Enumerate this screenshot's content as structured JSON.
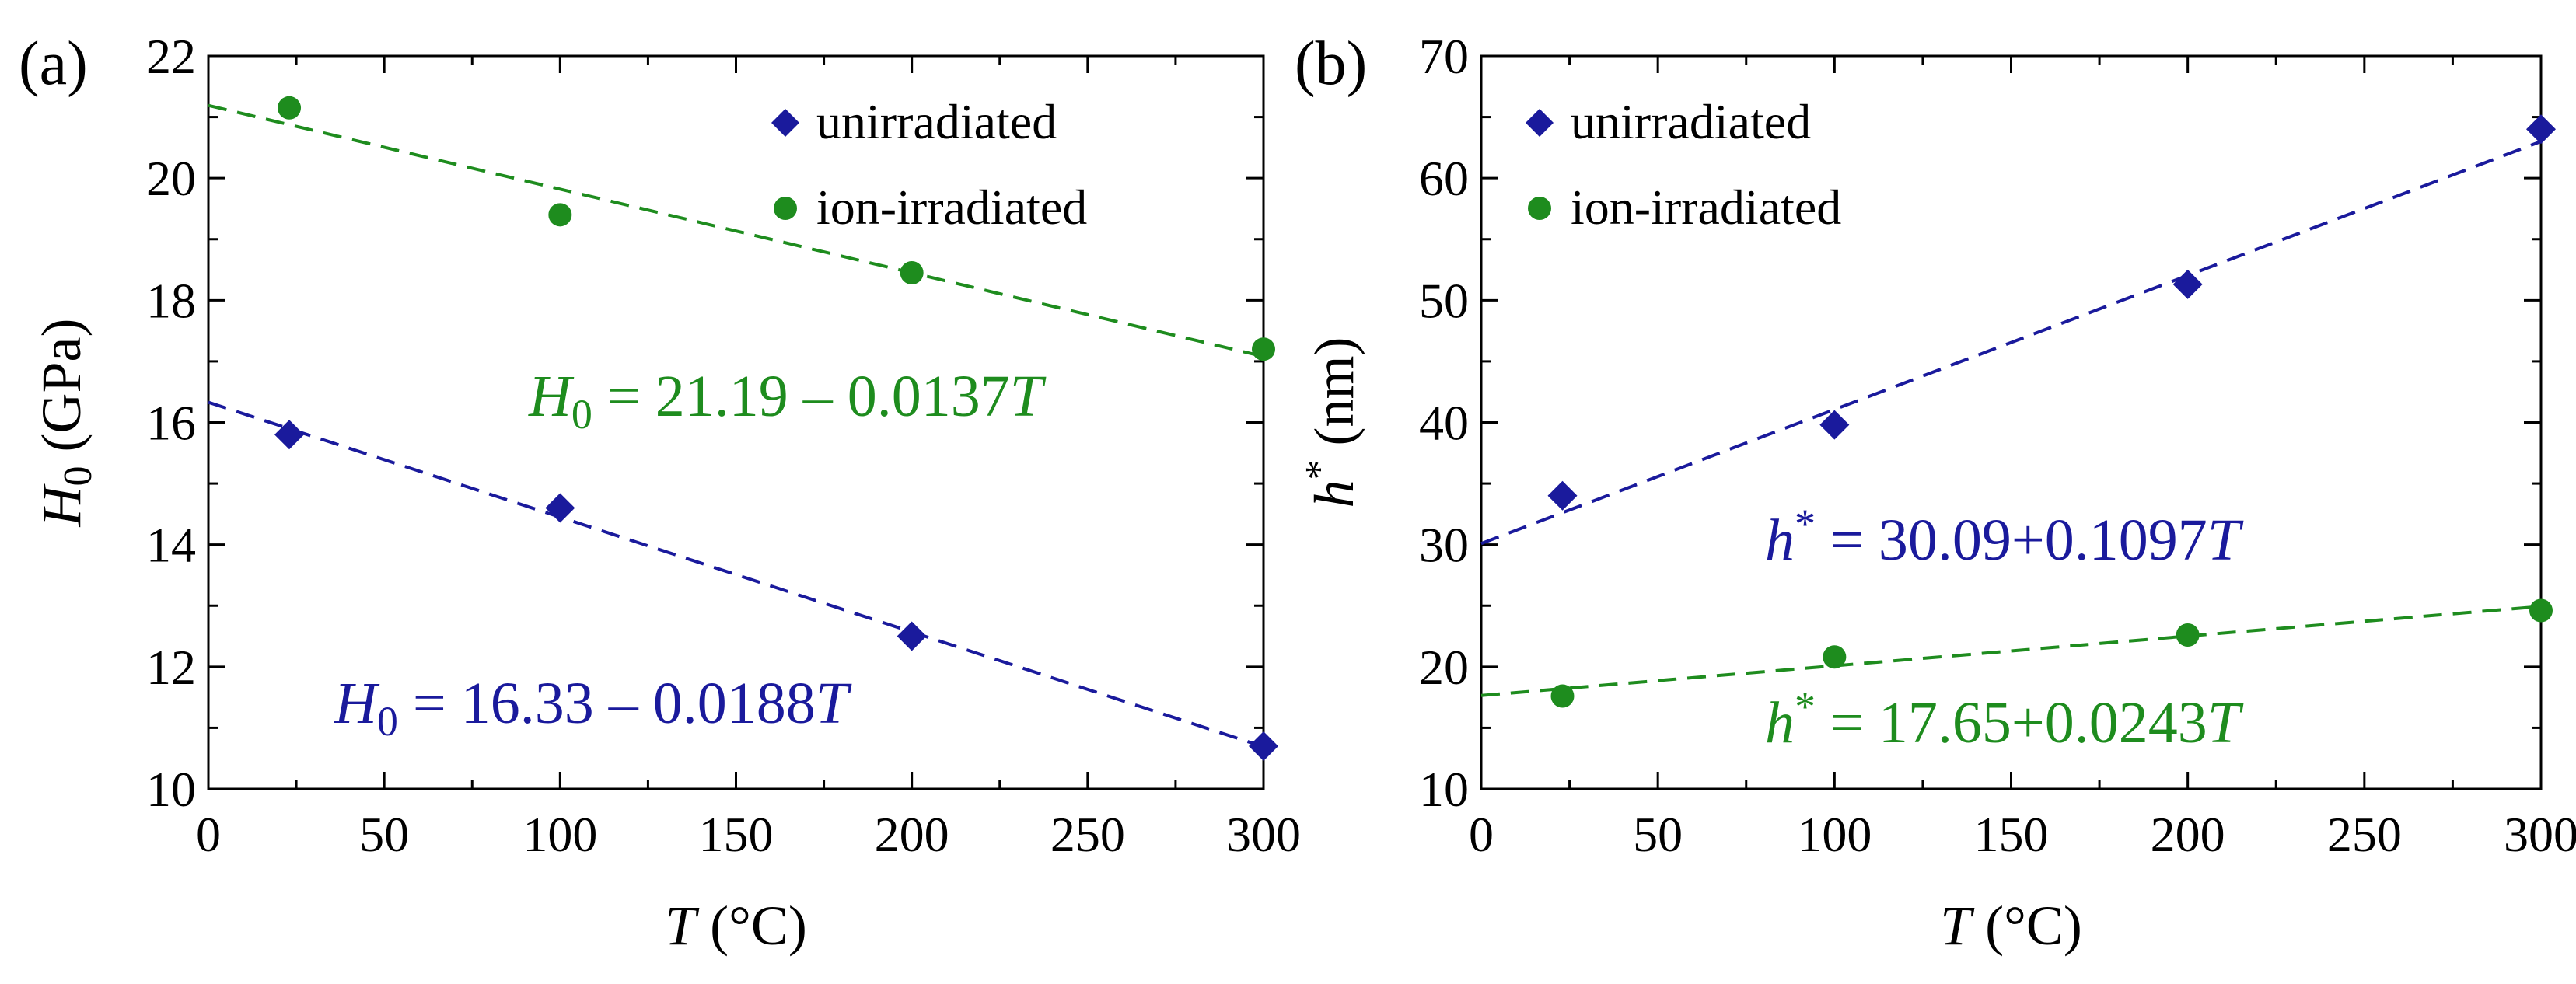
{
  "chart_data": [
    {
      "type": "scatter",
      "panel_label": "(a)",
      "xlabel": "T (°C)",
      "ylabel": "H0 (GPa)",
      "xlim": [
        0,
        300
      ],
      "ylim": [
        10,
        22
      ],
      "xticks": [
        0,
        50,
        100,
        150,
        200,
        250,
        300
      ],
      "yticks": [
        10,
        12,
        14,
        16,
        18,
        20,
        22
      ],
      "legend_position": "top-right",
      "series": [
        {
          "name": "unirradiated",
          "marker": "diamond",
          "color": "#1a1a9c",
          "x": [
            23,
            100,
            200,
            300
          ],
          "y": [
            15.8,
            14.6,
            12.5,
            10.7
          ],
          "fit": {
            "intercept": 16.33,
            "slope": -0.0188
          },
          "equation": {
            "lhs": "H",
            "sub": "0",
            "rhs": " = 16.33 – 0.0188",
            "var": "T"
          }
        },
        {
          "name": "ion-irradiated",
          "marker": "circle",
          "color": "#1e8c1e",
          "x": [
            23,
            100,
            200,
            300
          ],
          "y": [
            21.15,
            19.4,
            18.45,
            17.2
          ],
          "fit": {
            "intercept": 21.19,
            "slope": -0.0137
          },
          "equation": {
            "lhs": "H",
            "sub": "0",
            "rhs": " = 21.19 – 0.0137",
            "var": "T"
          }
        }
      ]
    },
    {
      "type": "scatter",
      "panel_label": "(b)",
      "xlabel": "T (°C)",
      "ylabel": "h* (nm)",
      "xlim": [
        0,
        300
      ],
      "ylim": [
        10,
        70
      ],
      "xticks": [
        0,
        50,
        100,
        150,
        200,
        250,
        300
      ],
      "yticks": [
        10,
        20,
        30,
        40,
        50,
        60,
        70
      ],
      "legend_position": "top-left",
      "series": [
        {
          "name": "unirradiated",
          "marker": "diamond",
          "color": "#1a1a9c",
          "x": [
            23,
            100,
            200,
            300
          ],
          "y": [
            34,
            39.8,
            51.3,
            64
          ],
          "fit": {
            "intercept": 30.09,
            "slope": 0.1097
          },
          "equation": {
            "lhs": "h",
            "sup": "*",
            "rhs": " = 30.09+0.1097",
            "var": "T"
          }
        },
        {
          "name": "ion-irradiated",
          "marker": "circle",
          "color": "#1e8c1e",
          "x": [
            23,
            100,
            200,
            300
          ],
          "y": [
            17.6,
            20.8,
            22.6,
            24.6
          ],
          "fit": {
            "intercept": 17.65,
            "slope": 0.0243
          },
          "equation": {
            "lhs": "h",
            "sup": "*",
            "rhs": " = 17.65+0.0243",
            "var": "T"
          }
        }
      ]
    }
  ]
}
